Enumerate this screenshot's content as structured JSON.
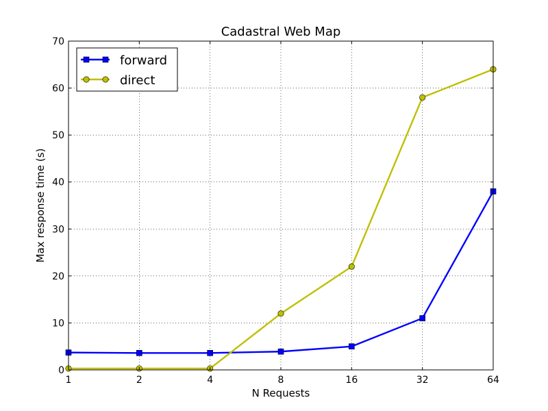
{
  "chart_data": {
    "type": "line",
    "title": "Cadastral Web Map",
    "xlabel": "N Requests",
    "ylabel": "Max response time (s)",
    "x_scale": "log2",
    "categories": [
      "1",
      "2",
      "4",
      "8",
      "16",
      "32",
      "64"
    ],
    "x": [
      1,
      2,
      4,
      8,
      16,
      32,
      64
    ],
    "ylim": [
      0,
      70
    ],
    "y_ticks": [
      0,
      10,
      20,
      30,
      40,
      50,
      60,
      70
    ],
    "grid": true,
    "legend_position": "top-left",
    "series": [
      {
        "name": "forward",
        "color": "#0000ff",
        "marker": "square",
        "values": [
          3.7,
          3.6,
          3.6,
          3.9,
          5.0,
          11.0,
          38.0
        ]
      },
      {
        "name": "direct",
        "color": "#bfbf00",
        "marker": "circle",
        "values": [
          0.3,
          0.3,
          0.3,
          12.0,
          22.0,
          58.0,
          64.0
        ]
      }
    ]
  }
}
